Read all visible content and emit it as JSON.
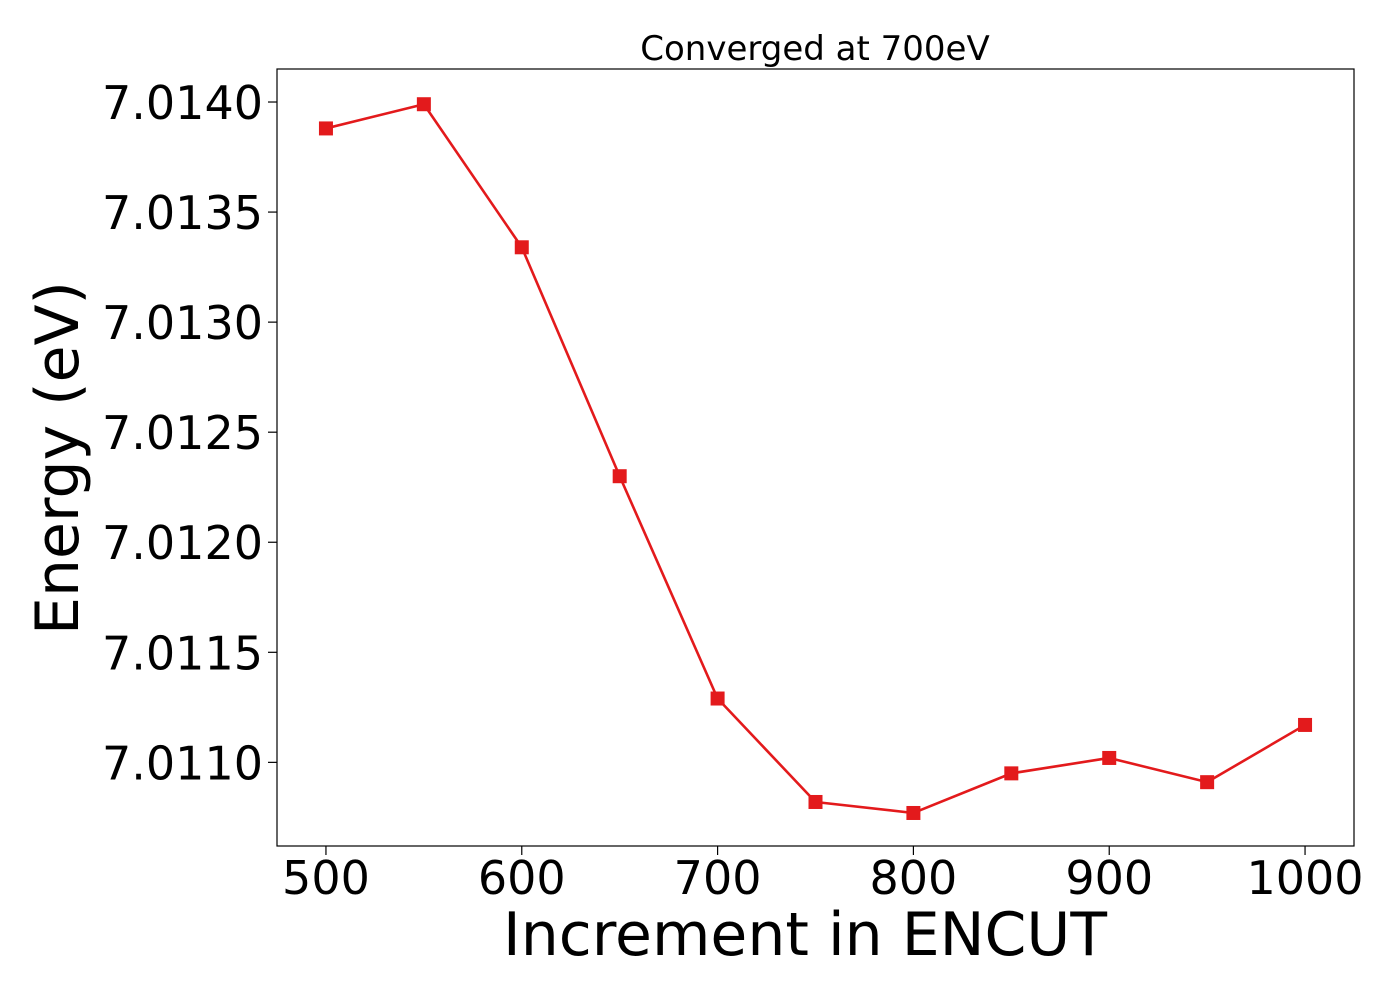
{
  "chart_data": {
    "type": "line",
    "title": "Converged at 700eV",
    "xlabel": "Increment in ENCUT",
    "ylabel": "Energy (eV)",
    "x": [
      500,
      550,
      600,
      650,
      700,
      750,
      800,
      850,
      900,
      950,
      1000
    ],
    "series": [
      {
        "values": [
          7.01388,
          7.01399,
          7.01334,
          7.0123,
          7.01129,
          7.01082,
          7.01077,
          7.01095,
          7.01102,
          7.01091,
          7.01117
        ],
        "color": "#e31a1c",
        "marker": "square"
      }
    ],
    "xlim": [
      475,
      1025
    ],
    "ylim": [
      7.01062,
      7.01415
    ],
    "xticks": [
      500,
      600,
      700,
      800,
      900,
      1000
    ],
    "xtick_labels": [
      "500",
      "600",
      "700",
      "800",
      "900",
      "1000"
    ],
    "yticks": [
      7.011,
      7.0115,
      7.012,
      7.0125,
      7.013,
      7.0135,
      7.014
    ],
    "ytick_labels": [
      "7.0110",
      "7.0115",
      "7.0120",
      "7.0125",
      "7.0130",
      "7.0135",
      "7.0140"
    ],
    "grid": false,
    "legend": false
  }
}
